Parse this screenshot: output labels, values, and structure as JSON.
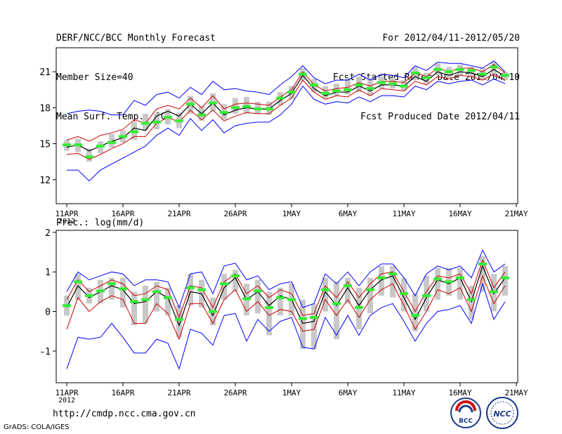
{
  "header": {
    "title": "DERF/NCC/BCC Monthly Forecast",
    "member_size": "Member Size=40",
    "variable": "Mean Surf. Temp.: °C",
    "period": "For 2012/04/11-2012/05/20",
    "started": "Fcst Started Refer Date 2012/04/10",
    "produced": "Fcst Produced Date 2012/04/11"
  },
  "footer": {
    "url": "http://cmdp.ncc.cma.gov.cn",
    "credit": "GrADS: COLA/IGES"
  },
  "logos": {
    "left_text": "BCC",
    "right_text": "NCC"
  },
  "colors": {
    "max_min": "#0000ff",
    "spread": "#cc0000",
    "mean": "#000000",
    "box": "#c8c8c8",
    "median": "#33ee33"
  },
  "chart_data": [
    {
      "id": "temp",
      "type": "line",
      "title": "Mean Surf. Temp.: °C",
      "ylim": [
        10,
        23
      ],
      "yticks": [
        12,
        15,
        18,
        21
      ],
      "xticks": [
        {
          "day": 0,
          "label": "11APR",
          "sub": "2012"
        },
        {
          "day": 5,
          "label": "16APR"
        },
        {
          "day": 10,
          "label": "21APR"
        },
        {
          "day": 15,
          "label": "26APR"
        },
        {
          "day": 20,
          "label": "1MAY"
        },
        {
          "day": 25,
          "label": "6MAY"
        },
        {
          "day": 30,
          "label": "11MAY"
        },
        {
          "day": 35,
          "label": "16MAY"
        },
        {
          "day": 40,
          "label": "21MAY"
        }
      ],
      "days": [
        0,
        1,
        2,
        3,
        4,
        5,
        6,
        7,
        8,
        9,
        10,
        11,
        12,
        13,
        14,
        15,
        16,
        17,
        18,
        19,
        20,
        21,
        22,
        23,
        24,
        25,
        26,
        27,
        28,
        29,
        30,
        31,
        32,
        33,
        34,
        35,
        36,
        37,
        38,
        39
      ],
      "median": [
        14.9,
        14.9,
        13.9,
        14.8,
        15.1,
        15.6,
        16.0,
        16.7,
        16.8,
        17.2,
        16.9,
        18.3,
        17.4,
        18.4,
        17.6,
        18.0,
        18.1,
        17.9,
        17.9,
        18.8,
        19.3,
        20.8,
        19.9,
        19.2,
        19.4,
        19.5,
        19.9,
        19.6,
        20.1,
        20.0,
        19.8,
        20.9,
        20.5,
        21.2,
        21.0,
        21.2,
        21.1,
        20.8,
        21.4,
        20.7
      ],
      "box_low": [
        14.4,
        14.3,
        13.5,
        14.2,
        14.7,
        15.1,
        15.3,
        16.1,
        16.2,
        16.6,
        16.3,
        17.5,
        16.9,
        17.7,
        17.0,
        17.5,
        17.5,
        17.5,
        17.4,
        18.2,
        18.7,
        20.3,
        19.3,
        18.8,
        19.0,
        19.1,
        19.3,
        19.0,
        19.6,
        19.6,
        19.4,
        20.3,
        20.0,
        20.7,
        20.5,
        20.7,
        20.6,
        20.3,
        20.8,
        20.3
      ],
      "box_high": [
        15.3,
        15.4,
        14.6,
        15.2,
        15.8,
        16.1,
        16.8,
        17.5,
        17.5,
        17.9,
        17.6,
        19.0,
        18.1,
        19.2,
        18.3,
        18.8,
        18.9,
        18.5,
        18.5,
        19.3,
        19.8,
        21.3,
        20.4,
        19.8,
        20.0,
        20.5,
        20.6,
        20.5,
        20.6,
        20.5,
        20.3,
        21.4,
        20.9,
        21.7,
        21.4,
        21.6,
        21.4,
        21.3,
        21.8,
        21.0
      ],
      "mean": [
        14.7,
        14.9,
        14.4,
        14.8,
        15.2,
        15.5,
        16.3,
        16.1,
        17.3,
        17.7,
        17.3,
        18.3,
        17.5,
        18.4,
        17.4,
        17.8,
        18.0,
        17.9,
        17.9,
        18.6,
        19.2,
        20.7,
        19.6,
        19.0,
        19.3,
        19.3,
        19.8,
        19.4,
        19.9,
        19.9,
        19.8,
        20.6,
        20.2,
        21.0,
        20.7,
        21.0,
        20.9,
        20.6,
        21.2,
        20.6
      ],
      "upper": [
        15.3,
        15.6,
        15.2,
        15.7,
        15.9,
        16.2,
        17.0,
        16.7,
        17.9,
        18.2,
        17.9,
        18.8,
        18.0,
        19.0,
        17.9,
        18.3,
        18.4,
        18.3,
        18.2,
        18.9,
        19.5,
        21.0,
        19.9,
        19.4,
        19.6,
        19.7,
        20.1,
        19.8,
        20.2,
        20.2,
        20.1,
        20.9,
        20.6,
        21.3,
        21.0,
        21.3,
        21.3,
        21.0,
        21.6,
        20.9
      ],
      "lower": [
        14.1,
        14.2,
        13.7,
        14.1,
        14.6,
        15.0,
        15.6,
        15.6,
        16.7,
        17.2,
        16.8,
        17.8,
        17.0,
        17.8,
        16.9,
        17.3,
        17.6,
        17.5,
        17.5,
        18.2,
        18.8,
        20.3,
        19.3,
        18.7,
        19.0,
        18.9,
        19.5,
        19.0,
        19.6,
        19.5,
        19.4,
        20.2,
        19.9,
        20.6,
        20.4,
        20.7,
        20.6,
        20.3,
        20.8,
        20.3
      ],
      "max": [
        17.5,
        17.7,
        17.8,
        17.7,
        17.4,
        17.4,
        18.6,
        18.2,
        19.1,
        19.3,
        18.8,
        19.7,
        19.1,
        20.2,
        19.5,
        19.6,
        19.4,
        19.3,
        19.1,
        19.9,
        20.6,
        21.5,
        20.5,
        20.0,
        20.3,
        20.3,
        20.8,
        20.3,
        20.8,
        20.7,
        20.5,
        21.5,
        21.1,
        21.8,
        21.7,
        21.7,
        21.5,
        21.3,
        21.9,
        21.0
      ],
      "min": [
        12.8,
        12.8,
        11.9,
        12.8,
        13.3,
        13.8,
        14.3,
        14.8,
        15.7,
        16.3,
        15.7,
        17.1,
        16.1,
        17.0,
        15.9,
        16.5,
        16.7,
        16.8,
        16.8,
        17.4,
        18.3,
        19.8,
        18.7,
        18.3,
        18.5,
        18.4,
        18.9,
        18.5,
        19.0,
        19.0,
        18.9,
        19.8,
        19.5,
        20.2,
        20.0,
        20.2,
        20.3,
        19.9,
        20.4,
        20.0
      ]
    },
    {
      "id": "precip",
      "type": "line",
      "title": "Prec.: log(mm/d)",
      "ylim": [
        -1.8,
        2.05
      ],
      "yticks": [
        -1,
        0,
        1,
        2
      ],
      "xticks": [
        {
          "day": 0,
          "label": "11APR",
          "sub": "2012"
        },
        {
          "day": 5,
          "label": "16APR"
        },
        {
          "day": 10,
          "label": "21APR"
        },
        {
          "day": 15,
          "label": "26APR"
        },
        {
          "day": 20,
          "label": "1MAY"
        },
        {
          "day": 25,
          "label": "6MAY"
        },
        {
          "day": 30,
          "label": "11MAY"
        },
        {
          "day": 35,
          "label": "16MAY"
        },
        {
          "day": 40,
          "label": "21MAY"
        }
      ],
      "days": [
        0,
        1,
        2,
        3,
        4,
        5,
        6,
        7,
        8,
        9,
        10,
        11,
        12,
        13,
        14,
        15,
        16,
        17,
        18,
        19,
        20,
        21,
        22,
        23,
        24,
        25,
        26,
        27,
        28,
        29,
        30,
        31,
        32,
        33,
        34,
        35,
        36,
        37,
        38,
        39
      ],
      "median": [
        0.15,
        0.75,
        0.4,
        0.52,
        0.7,
        0.57,
        0.25,
        0.3,
        0.5,
        0.35,
        -0.2,
        0.6,
        0.55,
        0.0,
        0.7,
        0.9,
        0.32,
        0.52,
        0.1,
        0.35,
        0.3,
        -0.18,
        -0.15,
        0.55,
        0.2,
        0.65,
        0.1,
        0.55,
        0.85,
        0.95,
        0.45,
        -0.1,
        0.4,
        0.82,
        0.75,
        0.85,
        0.3,
        1.2,
        0.5,
        0.85
      ],
      "box_low": [
        -0.1,
        0.3,
        0.2,
        0.2,
        0.3,
        0.1,
        -0.35,
        -0.3,
        0.0,
        -0.1,
        -0.65,
        0.15,
        0.1,
        -0.35,
        0.3,
        0.5,
        -0.1,
        -0.05,
        -0.6,
        -0.1,
        -0.1,
        -0.95,
        -0.95,
        0.0,
        -0.7,
        0.2,
        -0.45,
        -0.05,
        0.4,
        0.35,
        0.0,
        -0.5,
        0.0,
        0.3,
        0.4,
        0.3,
        -0.2,
        0.5,
        0.0,
        0.4
      ],
      "box_high": [
        0.4,
        0.95,
        0.6,
        0.8,
        0.85,
        0.85,
        0.5,
        0.65,
        0.75,
        0.6,
        0.15,
        0.95,
        0.8,
        0.35,
        0.95,
        1.05,
        0.7,
        0.8,
        0.5,
        0.6,
        0.7,
        0.3,
        0.2,
        0.85,
        0.75,
        0.85,
        0.6,
        0.85,
        1.15,
        1.15,
        0.85,
        0.45,
        0.9,
        1.1,
        1.1,
        1.1,
        0.65,
        1.4,
        0.95,
        1.15
      ],
      "mean": [
        0.1,
        0.65,
        0.35,
        0.5,
        0.65,
        0.55,
        0.2,
        0.25,
        0.5,
        0.35,
        -0.35,
        0.5,
        0.45,
        -0.1,
        0.6,
        0.85,
        0.3,
        0.5,
        0.15,
        0.4,
        0.3,
        -0.3,
        -0.25,
        0.5,
        0.15,
        0.6,
        0.15,
        0.55,
        0.8,
        0.9,
        0.35,
        -0.2,
        0.35,
        0.8,
        0.7,
        0.85,
        0.25,
        1.15,
        0.45,
        0.85
      ],
      "upper": [
        0.3,
        0.8,
        0.5,
        0.65,
        0.8,
        0.7,
        0.4,
        0.45,
        0.65,
        0.55,
        -0.15,
        0.65,
        0.6,
        0.1,
        0.75,
        0.95,
        0.45,
        0.65,
        0.35,
        0.55,
        0.45,
        -0.1,
        -0.05,
        0.65,
        0.35,
        0.75,
        0.35,
        0.7,
        0.95,
        1.0,
        0.5,
        0.0,
        0.5,
        0.9,
        0.85,
        0.95,
        0.45,
        1.3,
        0.6,
        1.0
      ],
      "lower": [
        -0.45,
        0.35,
        0.0,
        0.25,
        0.4,
        0.3,
        -0.3,
        -0.3,
        0.2,
        -0.05,
        -0.7,
        0.2,
        0.2,
        -0.3,
        0.3,
        0.55,
        0.0,
        0.25,
        -0.1,
        0.05,
        0.0,
        -0.5,
        -0.45,
        0.3,
        -0.1,
        0.3,
        -0.15,
        0.3,
        0.55,
        0.7,
        0.15,
        -0.45,
        0.0,
        0.55,
        0.45,
        0.6,
        0.0,
        0.9,
        0.2,
        0.65
      ],
      "max": [
        0.5,
        1.0,
        0.8,
        0.9,
        1.0,
        0.95,
        0.65,
        0.8,
        0.8,
        0.75,
        0.1,
        0.95,
        1.0,
        0.45,
        1.15,
        1.22,
        0.8,
        0.9,
        0.55,
        0.7,
        0.75,
        0.1,
        0.2,
        0.95,
        0.7,
        1.0,
        0.65,
        1.0,
        1.2,
        1.2,
        0.85,
        0.4,
        0.95,
        1.15,
        1.05,
        1.15,
        0.85,
        1.55,
        1.0,
        1.2
      ],
      "min": [
        -1.45,
        -0.65,
        -0.7,
        -0.65,
        -0.3,
        -0.65,
        -1.05,
        -1.05,
        -0.7,
        -0.8,
        -1.45,
        -0.45,
        -0.55,
        -0.85,
        -0.1,
        -0.05,
        -0.75,
        -0.2,
        -0.5,
        -0.25,
        -0.15,
        -0.9,
        -0.95,
        -0.15,
        -0.6,
        -0.1,
        -0.6,
        -0.1,
        0.1,
        0.2,
        -0.25,
        -0.75,
        -0.3,
        0.0,
        0.05,
        0.15,
        -0.3,
        0.7,
        -0.2,
        0.25
      ]
    }
  ]
}
